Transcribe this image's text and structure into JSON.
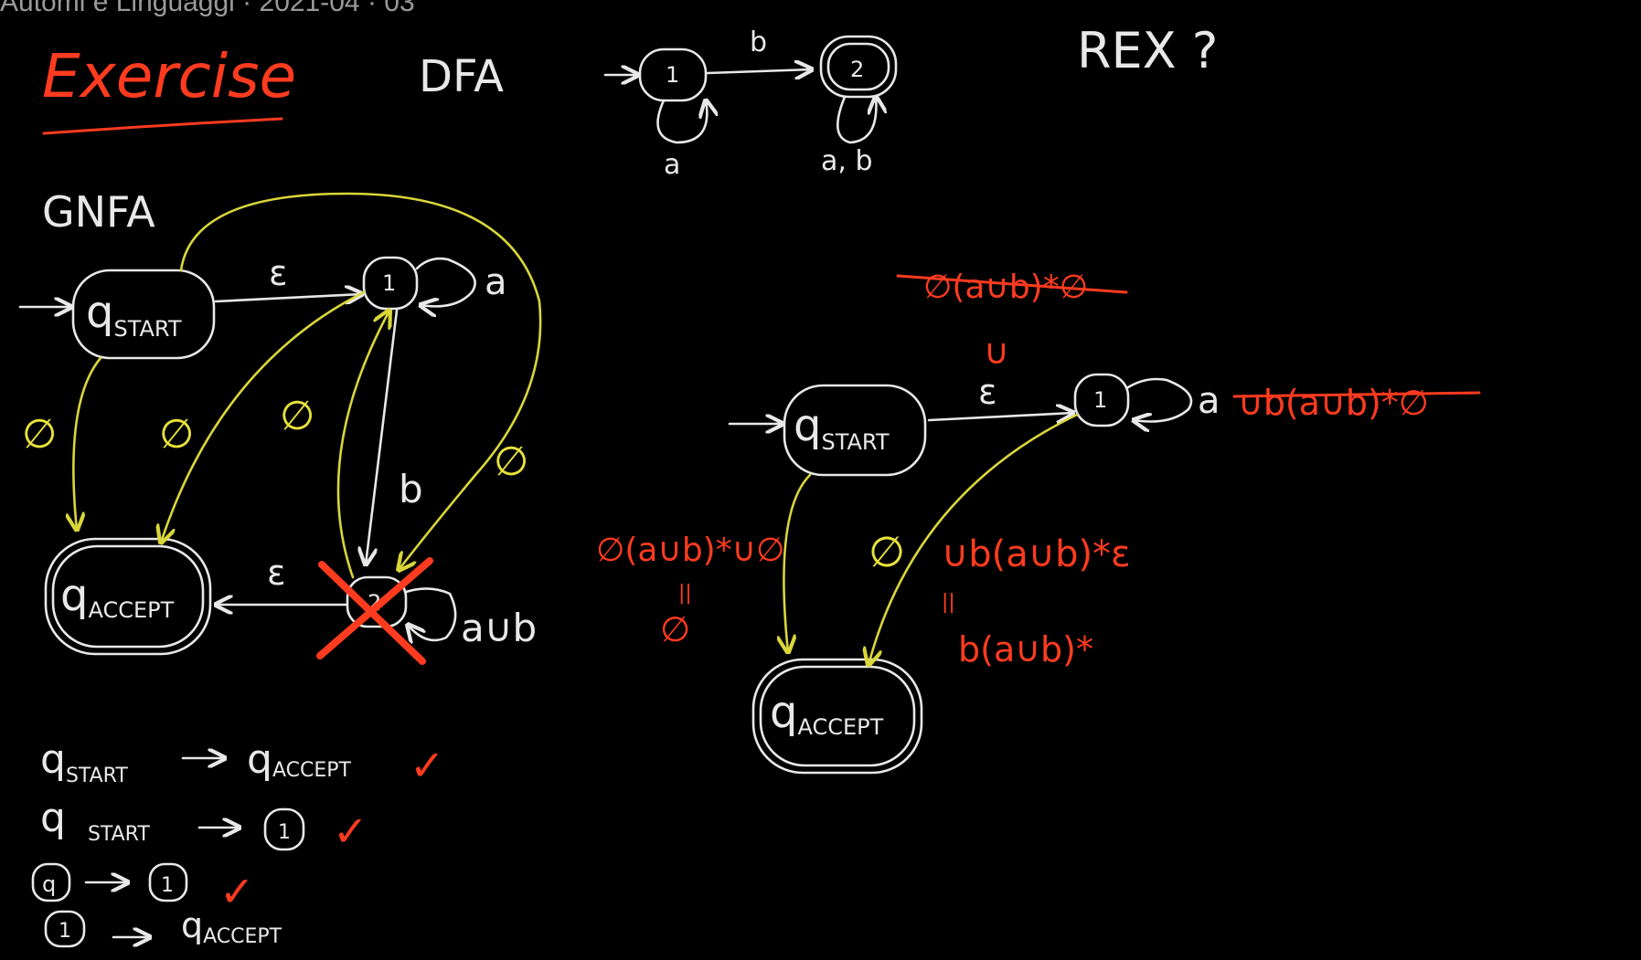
{
  "header": {
    "title": "Automi e Linguaggi · 2021-04 · 03"
  },
  "colors": {
    "background": "#000000",
    "chalk": "#e8e8e8",
    "red": "#ff3b1f",
    "yellow": "#d9d63a"
  },
  "top": {
    "exercise": "Exercise",
    "dfa_label": "DFA",
    "rex_label": "REX ?",
    "dfa": {
      "state1": "1",
      "state2": "2",
      "edge_1_2": "b",
      "loop_1": "a",
      "loop_2": "a, b"
    }
  },
  "gnfa_left": {
    "label": "GNFA",
    "start": "q",
    "start_sub": "START",
    "accept": "q",
    "accept_sub": "ACCEPT",
    "state1": "1",
    "state2": "2",
    "edge_start_1": "ε",
    "loop_1": "a",
    "edge_1_2": "b",
    "edge_2_accept": "ε",
    "loop_2": "a∪b",
    "phi_start_accept": "∅",
    "phi_1_accept": "∅",
    "phi_2_1": "∅",
    "phi_start_2": "∅"
  },
  "gnfa_right": {
    "start": "q",
    "start_sub": "START",
    "accept": "q",
    "accept_sub": "ACCEPT",
    "state1": "1",
    "struck_top": "∅(a∪b)*∅",
    "union_sign": "∪",
    "edge_start_1": "ε",
    "loop_1": "a",
    "struck_loop": "∪b(a∪b)*∅",
    "phi_start_accept": "∅",
    "red_left_expr": "∅(a∪b)*∪∅",
    "equals": "||",
    "red_left_result": "∅",
    "red_right_expr": "∪b(a∪b)*ε",
    "red_right_result": "b(a∪b)*"
  },
  "steps": [
    {
      "from": "q",
      "from_sub": "START",
      "to": "q",
      "to_sub": "ACCEPT",
      "mark": "✓"
    },
    {
      "from": "q",
      "from_sub": "START",
      "to": "1",
      "mark": "✓"
    },
    {
      "from": "q",
      "to": "1",
      "mark": "✓"
    },
    {
      "from": "1",
      "to": "q",
      "to_sub": "ACCEPT",
      "mark": ""
    }
  ]
}
